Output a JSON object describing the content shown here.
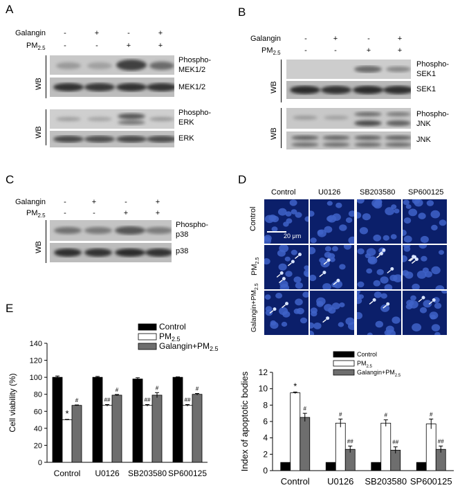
{
  "panels": {
    "A": {
      "letter": "A",
      "conditions": {
        "galangin_label": "Galangin",
        "pm_label": "PM",
        "pm_sub": "2.5",
        "galangin": [
          "-",
          "+",
          "-",
          "+"
        ],
        "pm": [
          "-",
          "-",
          "+",
          "+"
        ]
      },
      "wb": "WB",
      "bands": [
        "Phospho-MEK1/2",
        "MEK1/2",
        "Phospho-ERK",
        "ERK"
      ],
      "band_lines": [
        [
          "Phospho-",
          "MEK1/2"
        ],
        [
          "MEK1/2"
        ],
        [
          "Phospho-",
          "ERK"
        ],
        [
          "ERK"
        ]
      ]
    },
    "B": {
      "letter": "B",
      "conditions": {
        "galangin_label": "Galangin",
        "pm_label": "PM",
        "pm_sub": "2.5",
        "galangin": [
          "-",
          "+",
          "-",
          "+"
        ],
        "pm": [
          "-",
          "-",
          "+",
          "+"
        ]
      },
      "wb": "WB",
      "band_lines": [
        [
          "Phospho-",
          "SEK1"
        ],
        [
          "SEK1"
        ],
        [
          "Phospho-",
          "JNK"
        ],
        [
          "JNK"
        ]
      ]
    },
    "C": {
      "letter": "C",
      "conditions": {
        "galangin_label": "Galangin",
        "pm_label": "PM",
        "pm_sub": "2.5",
        "galangin": [
          "-",
          "+",
          "-",
          "+"
        ],
        "pm": [
          "-",
          "-",
          "+",
          "+"
        ]
      },
      "wb": "WB",
      "band_lines": [
        [
          "Phospho-",
          "p38"
        ],
        [
          "p38"
        ]
      ]
    },
    "D": {
      "letter": "D",
      "columns": [
        "Control",
        "U0126",
        "SB203580",
        "SP600125"
      ],
      "rows": [
        {
          "main": "Control",
          "sub": ""
        },
        {
          "main": "PM",
          "sub": "2.5"
        },
        {
          "main": "Galangin+PM",
          "sub": "2.5"
        }
      ],
      "scale_bar": "20 μm"
    },
    "E": {
      "letter": "E"
    }
  },
  "chart_data": [
    {
      "type": "bar",
      "panel": "E",
      "categories": [
        "Control",
        "U0126",
        "SB203580",
        "SP600125"
      ],
      "series": [
        {
          "name": "Control",
          "values": [
            100,
            100,
            98,
            100
          ],
          "errors": [
            1.5,
            1,
            1.5,
            0.5
          ],
          "color": "#000000"
        },
        {
          "name": "PM2.5",
          "values": [
            50,
            67,
            67,
            67
          ],
          "errors": [
            0.5,
            1,
            1,
            1
          ],
          "color": "#ffffff"
        },
        {
          "name": "Galangin+PM2.5",
          "values": [
            67,
            79,
            79,
            80
          ],
          "errors": [
            0.5,
            0.8,
            3,
            1
          ],
          "color": "#6e6e6e"
        }
      ],
      "annotations": [
        {
          "category": 0,
          "series": 1,
          "text": "*"
        },
        {
          "category": 0,
          "series": 2,
          "text": "#"
        },
        {
          "category": 1,
          "series": 1,
          "text": "##"
        },
        {
          "category": 1,
          "series": 2,
          "text": "#"
        },
        {
          "category": 2,
          "series": 1,
          "text": "##"
        },
        {
          "category": 2,
          "series": 2,
          "text": "#"
        },
        {
          "category": 3,
          "series": 1,
          "text": "##"
        },
        {
          "category": 3,
          "series": 2,
          "text": "#"
        }
      ],
      "ylabel": "Cell viability (%)",
      "ylim": [
        0,
        140
      ],
      "yticks": [
        0,
        20,
        40,
        60,
        80,
        100,
        120,
        140
      ],
      "legend_position": "top-right"
    },
    {
      "type": "bar",
      "panel": "D",
      "categories": [
        "Control",
        "U0126",
        "SB203580",
        "SP600125"
      ],
      "series": [
        {
          "name": "Control",
          "values": [
            1,
            1,
            1,
            1
          ],
          "errors": [
            0,
            0,
            0,
            0
          ],
          "color": "#000000"
        },
        {
          "name": "PM2.5",
          "values": [
            9.5,
            5.8,
            5.8,
            5.7
          ],
          "errors": [
            0.1,
            0.5,
            0.4,
            0.6
          ],
          "color": "#ffffff"
        },
        {
          "name": "Galangin+PM2.5",
          "values": [
            6.5,
            2.6,
            2.5,
            2.6
          ],
          "errors": [
            0.5,
            0.4,
            0.4,
            0.4
          ],
          "color": "#6e6e6e"
        }
      ],
      "annotations": [
        {
          "category": 0,
          "series": 1,
          "text": "*"
        },
        {
          "category": 0,
          "series": 2,
          "text": "#"
        },
        {
          "category": 1,
          "series": 1,
          "text": "#"
        },
        {
          "category": 1,
          "series": 2,
          "text": "##"
        },
        {
          "category": 2,
          "series": 1,
          "text": "#"
        },
        {
          "category": 2,
          "series": 2,
          "text": "##"
        },
        {
          "category": 3,
          "series": 1,
          "text": "#"
        },
        {
          "category": 3,
          "series": 2,
          "text": "##"
        }
      ],
      "ylabel": "Index of apoptotic bodies",
      "ylim": [
        0,
        12
      ],
      "yticks": [
        0,
        2,
        4,
        6,
        8,
        10,
        12
      ],
      "legend_position": "top-right"
    }
  ]
}
